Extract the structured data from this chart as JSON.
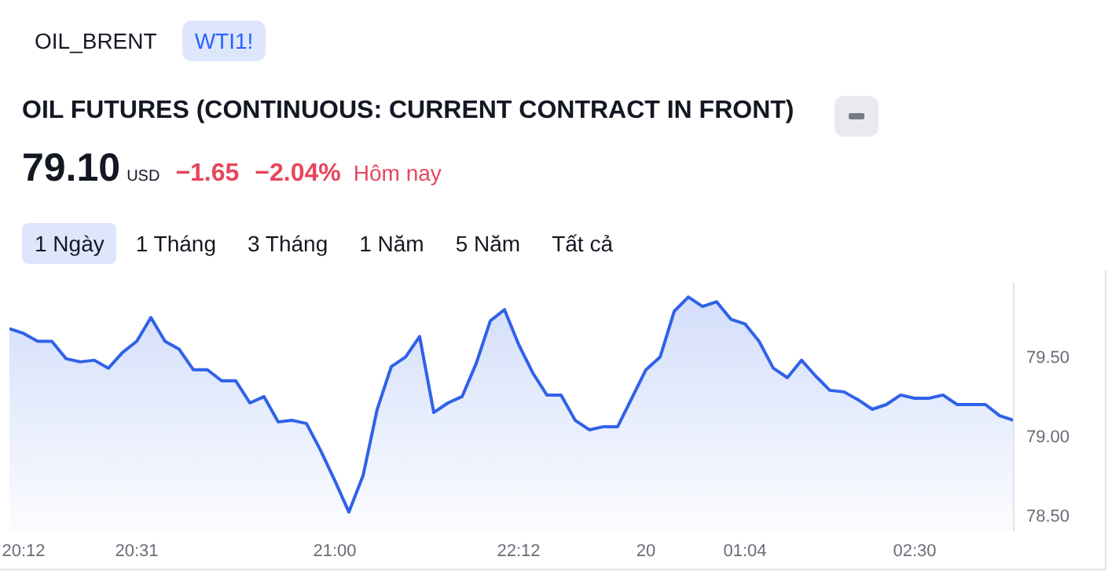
{
  "chart_data": {
    "type": "area",
    "title": "OIL FUTURES (CONTINUOUS: CURRENT CONTRACT IN FRONT)",
    "annotations": [
      "OIL_BRENT",
      "WTI1!",
      "79.10",
      "USD",
      "−1.65",
      "−2.04%",
      "Hôm nay",
      "1 Ngày",
      "1 Tháng",
      "3 Tháng",
      "1 Năm",
      "5 Năm",
      "Tất cả"
    ],
    "categories": [
      null,
      "20:12",
      null,
      null,
      null,
      null,
      null,
      null,
      null,
      "20:31",
      null,
      null,
      null,
      null,
      null,
      null,
      null,
      null,
      null,
      null,
      null,
      null,
      null,
      "21:00",
      null,
      null,
      null,
      null,
      null,
      null,
      null,
      null,
      null,
      null,
      null,
      null,
      "22:12",
      null,
      null,
      null,
      null,
      null,
      null,
      null,
      null,
      "20",
      null,
      null,
      null,
      null,
      null,
      null,
      "01:04",
      null,
      null,
      null,
      null,
      null,
      null,
      null,
      null,
      null,
      null,
      null,
      "02:30",
      null,
      null,
      null,
      null,
      null,
      null,
      null
    ],
    "series": [
      {
        "color": "#2f62e8",
        "values": [
          79.68,
          79.65,
          79.6,
          79.6,
          79.49,
          79.47,
          79.48,
          79.43,
          79.53,
          79.6,
          79.75,
          79.6,
          79.55,
          79.42,
          79.42,
          79.35,
          79.35,
          79.21,
          79.25,
          79.09,
          79.1,
          79.08,
          78.91,
          78.72,
          78.52,
          78.75,
          79.17,
          79.44,
          79.5,
          79.63,
          79.15,
          79.21,
          79.25,
          79.46,
          79.73,
          79.8,
          79.58,
          79.4,
          79.26,
          79.26,
          79.1,
          79.04,
          79.06,
          79.06,
          79.24,
          79.42,
          79.5,
          79.79,
          79.88,
          79.82,
          79.85,
          79.74,
          79.71,
          79.6,
          79.43,
          79.37,
          79.48,
          79.38,
          79.29,
          79.28,
          79.23,
          79.17,
          79.2,
          79.26,
          79.24,
          79.24,
          79.26,
          79.2,
          79.2,
          79.2,
          79.13,
          79.1
        ]
      }
    ],
    "ylim": [
      78.4,
      79.97
    ],
    "yticks": [
      {
        "value": 78.5,
        "label": "78.50"
      },
      {
        "value": 79,
        "label": "79.00"
      },
      {
        "value": 79.5,
        "label": "79.50"
      }
    ],
    "grid": false,
    "legend": false
  }
}
